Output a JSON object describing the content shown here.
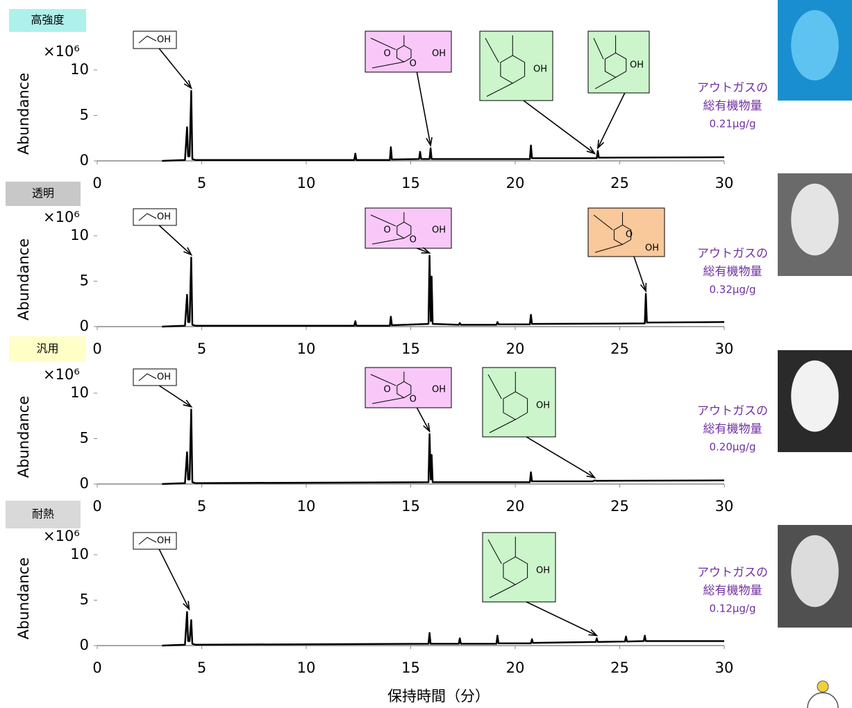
{
  "chart_data": [
    {
      "type": "line",
      "title": "高強度",
      "title_color": "#aef0ec",
      "y_multiplier": "×10⁶",
      "ylabel": "Abundance",
      "xlim": [
        0,
        30
      ],
      "ylim": [
        0,
        10
      ],
      "xticks": [
        0,
        5,
        10,
        15,
        20,
        25,
        30
      ],
      "yticks": [
        0,
        5,
        10
      ],
      "color": "#000000",
      "x": [
        3.1,
        4.2,
        4.3,
        4.35,
        4.42,
        4.5,
        4.55,
        4.7,
        12.3,
        12.35,
        12.4,
        14.0,
        14.05,
        14.1,
        15.4,
        15.45,
        15.5,
        15.9,
        15.95,
        16.0,
        20.7,
        20.75,
        20.8,
        23.9,
        23.95,
        24.0,
        30
      ],
      "values": [
        0,
        0.1,
        3.7,
        0.5,
        0.5,
        7.7,
        0.2,
        0.1,
        0.1,
        0.8,
        0.1,
        0.1,
        1.5,
        0.15,
        0.2,
        1.0,
        0.2,
        0.2,
        1.4,
        0.2,
        0.2,
        1.7,
        0.3,
        0.3,
        1.1,
        0.35,
        0.4
      ],
      "annotations": [
        {
          "texts": [
            "OH"
          ],
          "x": 4.5,
          "y": 7.7,
          "fill": "#ffffff"
        },
        {
          "texts": [
            "O",
            "O",
            "OH"
          ],
          "x": 15.95,
          "y": 1.4,
          "fill": "#f9c8f9"
        },
        {
          "texts": [
            "OH"
          ],
          "x": 23.8,
          "y": 0.5,
          "fill": "#ccf5cc"
        },
        {
          "texts": [
            "OH"
          ],
          "x": 23.95,
          "y": 1.1,
          "fill": "#ccf5cc"
        }
      ],
      "note": [
        "アウトガスの",
        "総有機物量",
        "0.21μg/g"
      ],
      "note_color": "#7030a0"
    },
    {
      "type": "line",
      "title": "透明",
      "title_color": "#c8c8c8",
      "y_multiplier": "×10⁶",
      "ylabel": "Abundance",
      "xlim": [
        0,
        30
      ],
      "ylim": [
        0,
        10
      ],
      "xticks": [
        0,
        5,
        10,
        15,
        20,
        25,
        30
      ],
      "yticks": [
        0,
        5,
        10
      ],
      "color": "#000000",
      "x": [
        3.1,
        4.2,
        4.3,
        4.35,
        4.42,
        4.5,
        4.55,
        4.7,
        12.3,
        12.35,
        12.4,
        14.0,
        14.05,
        14.1,
        15.85,
        15.9,
        15.96,
        16.0,
        16.05,
        17.3,
        17.35,
        17.4,
        19.1,
        19.15,
        19.2,
        20.7,
        20.75,
        20.8,
        26.2,
        26.25,
        26.3,
        30
      ],
      "values": [
        0,
        0.1,
        3.5,
        0.5,
        0.5,
        7.6,
        0.2,
        0.1,
        0.1,
        0.6,
        0.1,
        0.1,
        1.1,
        0.15,
        0.3,
        7.8,
        0.6,
        5.5,
        0.3,
        0.2,
        0.4,
        0.2,
        0.2,
        0.5,
        0.25,
        0.25,
        1.3,
        0.3,
        0.35,
        3.6,
        0.45,
        0.5
      ],
      "annotations": [
        {
          "texts": [
            "OH"
          ],
          "x": 4.5,
          "y": 7.6,
          "fill": "#ffffff"
        },
        {
          "texts": [
            "O",
            "O",
            "OH"
          ],
          "x": 15.9,
          "y": 7.8,
          "fill": "#f9c8f9"
        },
        {
          "texts": [
            "O",
            "OH"
          ],
          "x": 26.25,
          "y": 3.6,
          "fill": "#f9c89b"
        }
      ],
      "note": [
        "アウトガスの",
        "総有機物量",
        "0.32μg/g"
      ],
      "note_color": "#7030a0"
    },
    {
      "type": "line",
      "title": "汎用",
      "title_color": "#ffffc8",
      "y_multiplier": "×10⁶",
      "ylabel": "Abundance",
      "xlim": [
        0,
        30
      ],
      "ylim": [
        0,
        10
      ],
      "xticks": [
        0,
        5,
        10,
        15,
        20,
        25,
        30
      ],
      "yticks": [
        0,
        5,
        10
      ],
      "color": "#000000",
      "x": [
        3.1,
        4.2,
        4.3,
        4.35,
        4.42,
        4.5,
        4.55,
        4.7,
        15.85,
        15.9,
        15.96,
        16.0,
        16.05,
        20.7,
        20.75,
        20.8,
        23.7,
        23.8,
        23.9,
        30
      ],
      "values": [
        0,
        0.1,
        3.5,
        0.5,
        0.5,
        8.2,
        0.2,
        0.1,
        0.2,
        5.5,
        0.5,
        3.2,
        0.2,
        0.2,
        1.3,
        0.3,
        0.3,
        0.4,
        0.35,
        0.4
      ],
      "annotations": [
        {
          "texts": [
            "OH"
          ],
          "x": 4.5,
          "y": 8.2,
          "fill": "#ffffff"
        },
        {
          "texts": [
            "O",
            "O",
            "OH"
          ],
          "x": 15.9,
          "y": 5.5,
          "fill": "#f9c8f9"
        },
        {
          "texts": [
            "OH"
          ],
          "x": 23.8,
          "y": 0.4,
          "fill": "#ccf5cc"
        }
      ],
      "note": [
        "アウトガスの",
        "総有機物量",
        "0.20μg/g"
      ],
      "note_color": "#7030a0"
    },
    {
      "type": "line",
      "title": "耐熱",
      "title_color": "#d9d9d9",
      "y_multiplier": "×10⁶",
      "ylabel": "Abundance",
      "xlim": [
        0,
        30
      ],
      "ylim": [
        0,
        10
      ],
      "xticks": [
        0,
        5,
        10,
        15,
        20,
        25,
        30
      ],
      "yticks": [
        0,
        5,
        10
      ],
      "color": "#000000",
      "x": [
        3.1,
        4.2,
        4.3,
        4.35,
        4.42,
        4.5,
        4.55,
        4.7,
        15.85,
        15.9,
        15.95,
        17.3,
        17.35,
        17.4,
        19.1,
        19.15,
        19.2,
        20.75,
        20.8,
        20.85,
        23.85,
        23.9,
        23.95,
        25.25,
        25.3,
        25.35,
        26.15,
        26.2,
        26.25,
        30
      ],
      "values": [
        0,
        0.1,
        3.7,
        0.5,
        0.5,
        2.8,
        0.2,
        0.1,
        0.2,
        1.4,
        0.2,
        0.2,
        0.8,
        0.2,
        0.2,
        1.1,
        0.25,
        0.25,
        0.7,
        0.3,
        0.4,
        0.8,
        0.4,
        0.45,
        1.0,
        0.45,
        0.5,
        1.1,
        0.5,
        0.5
      ],
      "annotations": [
        {
          "texts": [
            "OH"
          ],
          "x": 4.4,
          "y": 3.7,
          "fill": "#ffffff"
        },
        {
          "texts": [
            "OH"
          ],
          "x": 23.9,
          "y": 0.8,
          "fill": "#ccf5cc"
        }
      ],
      "note": [
        "アウトガスの",
        "総有機物量",
        "0.12μg/g"
      ],
      "note_color": "#7030a0",
      "xlabel": "保持時間（分）"
    }
  ]
}
